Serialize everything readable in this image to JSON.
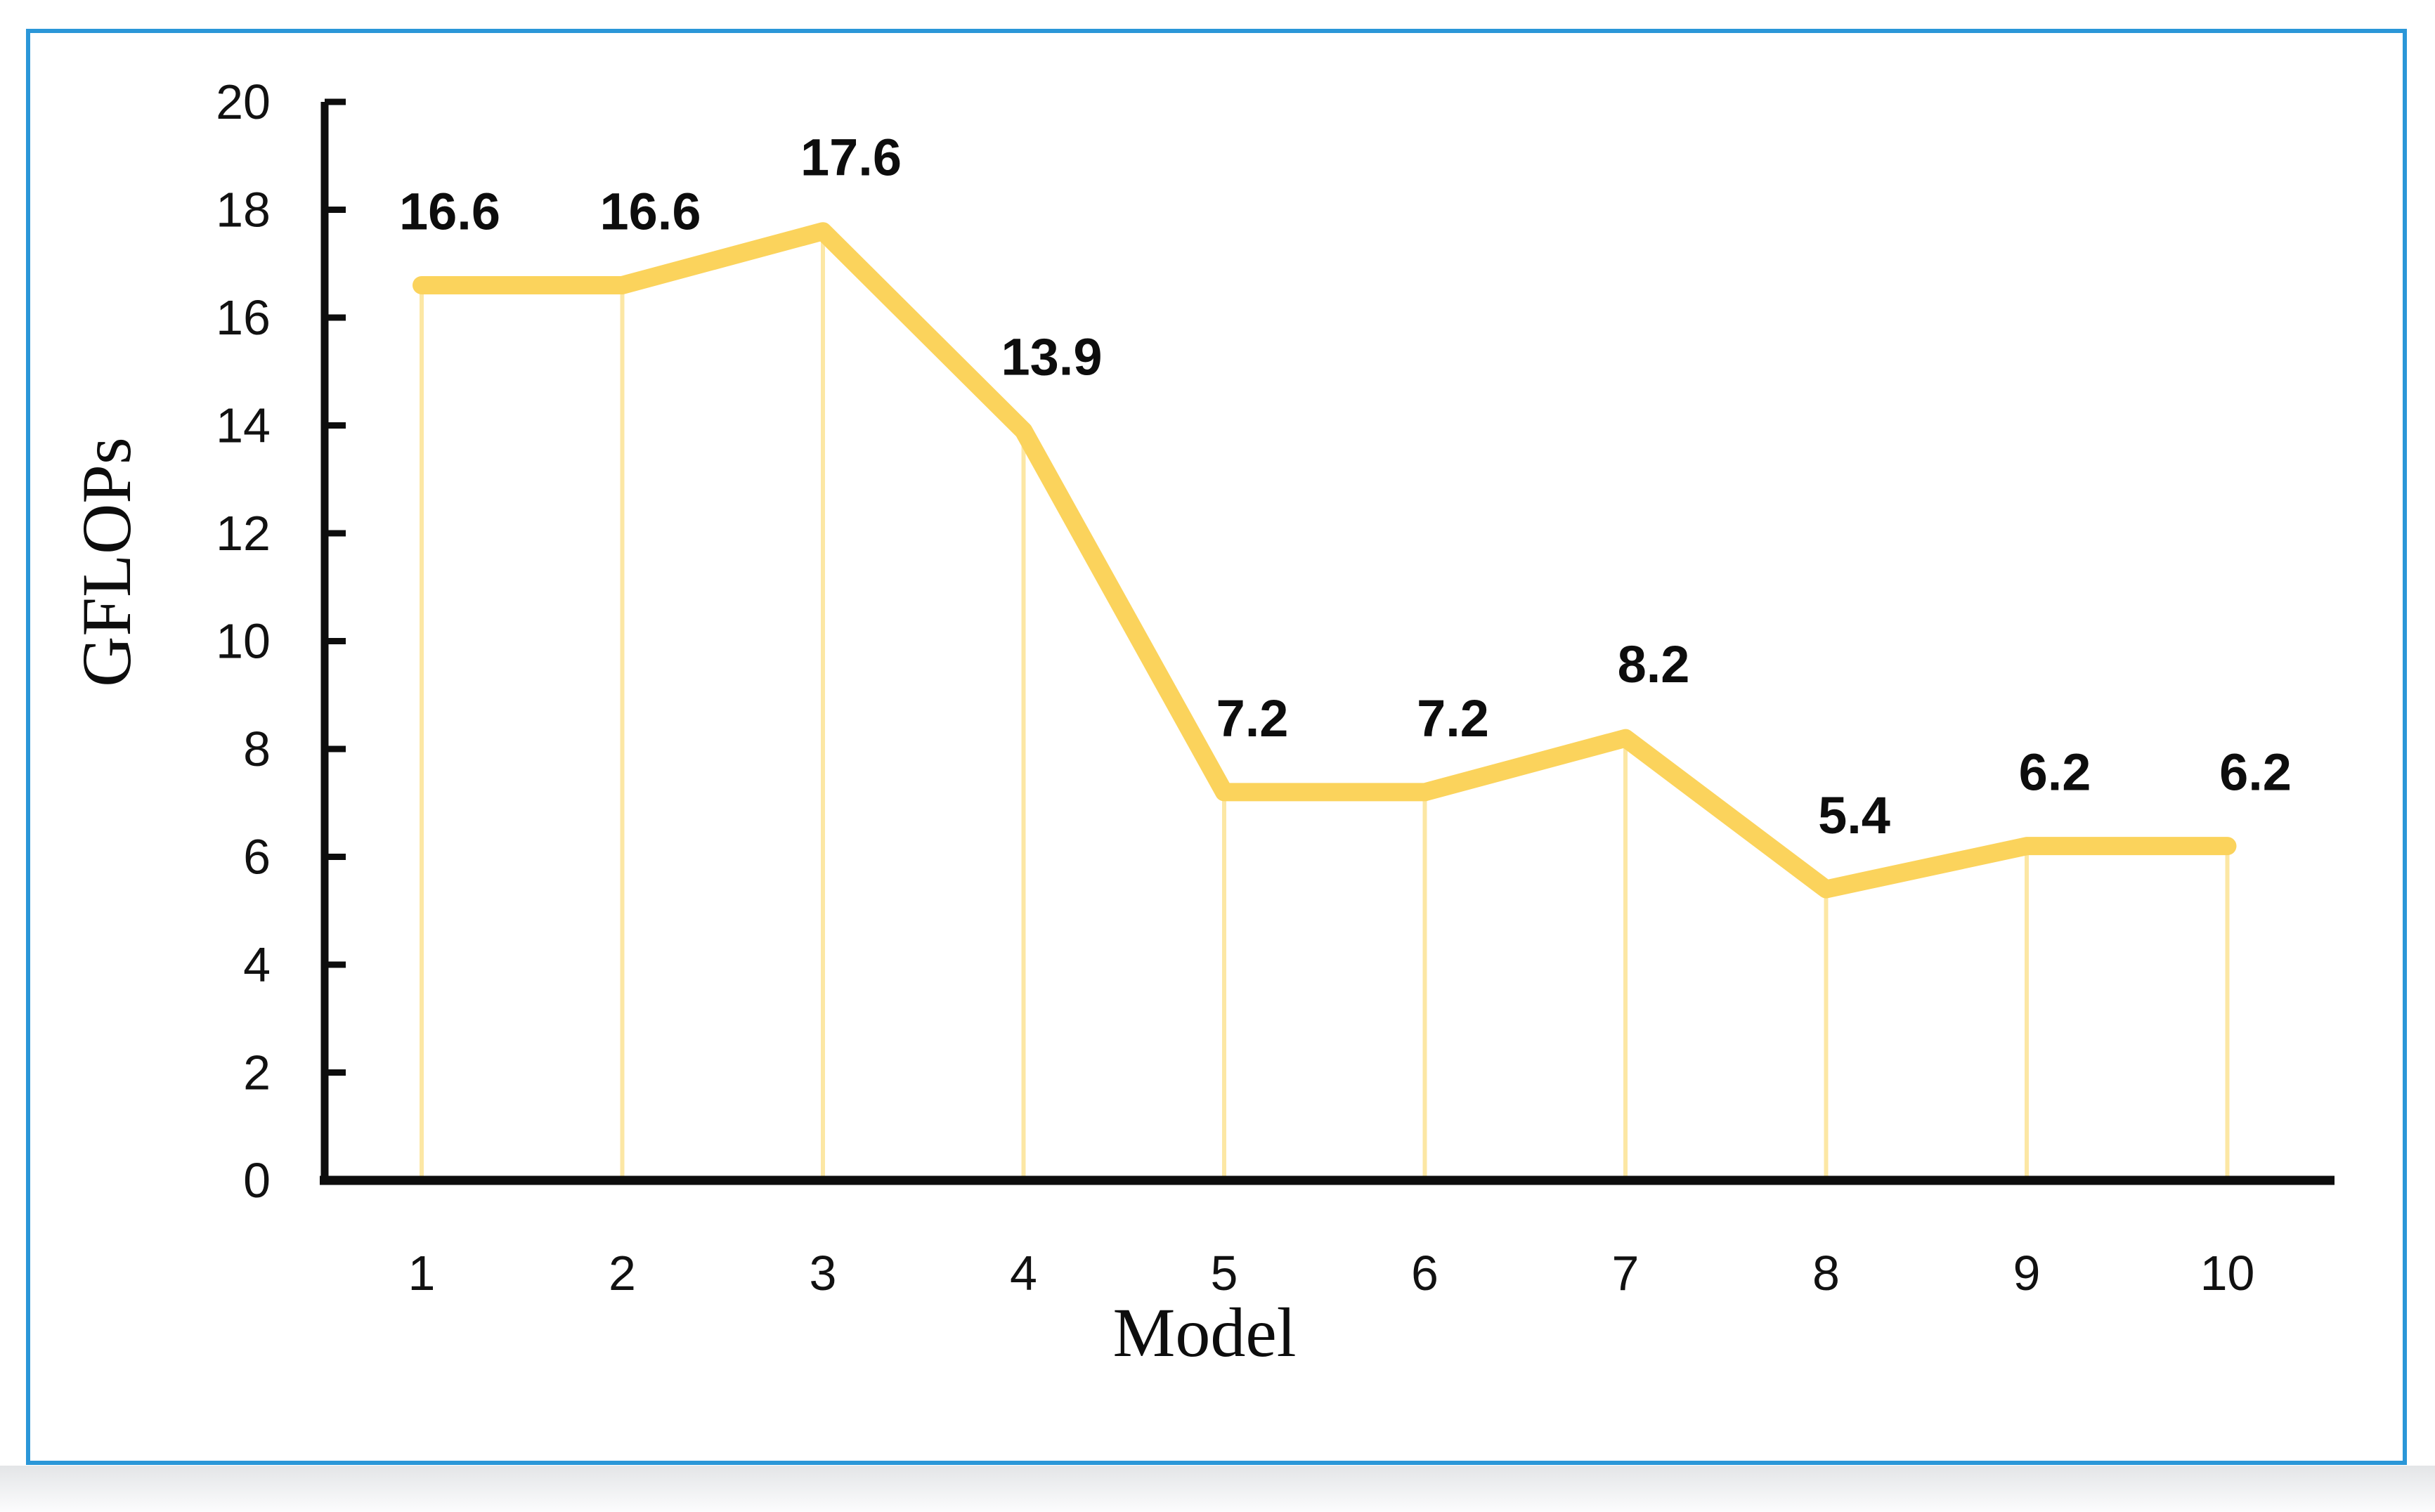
{
  "figure": {
    "background_color": "#ffffff",
    "frame_border_color": "#2b97d8",
    "shadow_band_top_color": "#e3e5e7",
    "shadow_band_bottom_color": "#fcfcfd"
  },
  "chart_data": {
    "type": "line",
    "title": "",
    "categories": [
      "1",
      "2",
      "3",
      "4",
      "5",
      "6",
      "7",
      "8",
      "9",
      "10"
    ],
    "series": [
      {
        "name": "GFLOPs",
        "values": [
          16.6,
          16.6,
          17.6,
          13.9,
          7.2,
          7.2,
          8.2,
          5.4,
          6.2,
          6.2
        ],
        "color": "#fbd35c"
      }
    ],
    "data_labels": [
      "16.6",
      "16.6",
      "17.6",
      "13.9",
      "7.2",
      "7.2",
      "8.2",
      "5.4",
      "6.2",
      "6.2"
    ],
    "xlabel": "Model",
    "ylabel": "GFLOPs",
    "ylim": [
      0,
      20
    ],
    "ytick_interval": 2,
    "yticks": [
      "0",
      "2",
      "4",
      "6",
      "8",
      "10",
      "12",
      "14",
      "16",
      "18",
      "20"
    ],
    "grid": false,
    "legend_position": "none",
    "drop_lines": true,
    "drop_line_color": "#fce7a4",
    "axis_color": "#0d0d0d",
    "text_color": "#111111"
  }
}
